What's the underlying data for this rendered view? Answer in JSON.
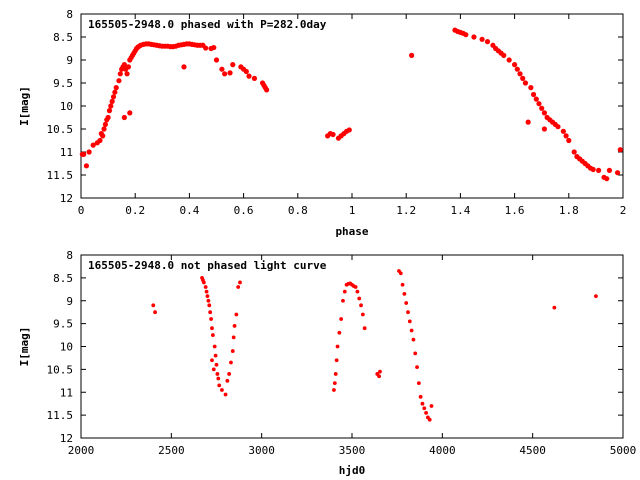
{
  "chart_data": [
    {
      "type": "scatter",
      "title": "165505-2948.0 phased with P=282.0day",
      "xlabel": "phase",
      "ylabel": "I[mag]",
      "xlim": [
        0,
        2
      ],
      "ylim": [
        12,
        8
      ],
      "y_inverted": true,
      "grid": false,
      "color": "#ff0000",
      "marker": "dot",
      "xticks": [
        0,
        0.2,
        0.4,
        0.6,
        0.8,
        1,
        1.2,
        1.4,
        1.6,
        1.8,
        2
      ],
      "xtick_labels": [
        "0",
        "0.2",
        "0.4",
        "0.6",
        "0.8",
        "1",
        "1.2",
        "1.4",
        "1.6",
        "1.8",
        "2"
      ],
      "yticks": [
        8,
        8.5,
        9,
        9.5,
        10,
        10.5,
        11,
        11.5,
        12
      ],
      "ytick_labels": [
        "8",
        "8.5",
        "9",
        "9.5",
        "10",
        "10.5",
        "11",
        "11.5",
        "12"
      ],
      "series": [
        {
          "x": [
            0.005,
            0.02,
            0.03,
            0.045,
            0.06,
            0.07,
            0.075,
            0.08,
            0.085,
            0.09,
            0.095,
            0.1,
            0.105,
            0.11,
            0.115,
            0.12,
            0.125,
            0.13,
            0.14,
            0.145,
            0.15,
            0.155,
            0.16,
            0.165,
            0.17,
            0.175,
            0.18,
            0.185,
            0.19,
            0.195,
            0.2,
            0.205,
            0.21,
            0.215,
            0.22,
            0.23,
            0.24,
            0.25,
            0.26,
            0.27,
            0.28,
            0.29,
            0.3,
            0.31,
            0.32,
            0.33,
            0.34,
            0.35,
            0.36,
            0.37,
            0.38,
            0.39,
            0.4,
            0.41,
            0.42,
            0.43,
            0.44,
            0.45,
            0.46,
            0.48,
            0.49,
            0.5,
            0.52,
            0.53,
            0.55,
            0.56,
            0.59,
            0.6,
            0.61,
            0.62,
            0.64,
            0.67,
            0.675,
            0.68,
            0.685,
            0.38,
            0.91,
            0.92,
            0.93,
            0.95,
            0.96,
            0.97,
            0.98,
            0.99,
            1.22,
            1.38,
            1.39,
            1.4,
            1.41,
            1.42,
            1.45,
            1.48,
            1.5,
            1.52,
            1.53,
            1.54,
            1.55,
            1.56,
            1.58,
            1.6,
            1.61,
            1.62,
            1.63,
            1.64,
            1.66,
            1.67,
            1.68,
            1.69,
            1.7,
            1.71,
            1.72,
            1.73,
            1.74,
            1.75,
            1.76,
            1.78,
            1.79,
            1.8,
            1.82,
            1.83,
            1.84,
            1.85,
            1.86,
            1.87,
            1.88,
            1.89,
            1.91,
            1.93,
            1.94,
            1.95,
            1.98,
            1.99,
            0.01,
            0.16,
            0.18,
            1.65,
            1.71
          ],
          "y": [
            11.05,
            11.3,
            11,
            10.85,
            10.8,
            10.75,
            10.6,
            10.65,
            10.5,
            10.4,
            10.3,
            10.25,
            10.1,
            10,
            9.9,
            9.8,
            9.7,
            9.6,
            9.45,
            9.3,
            9.2,
            9.15,
            9.1,
            9.2,
            9.3,
            9.15,
            9.0,
            8.95,
            8.9,
            8.85,
            8.8,
            8.75,
            8.72,
            8.7,
            8.68,
            8.66,
            8.65,
            8.65,
            8.66,
            8.67,
            8.68,
            8.69,
            8.7,
            8.7,
            8.7,
            8.71,
            8.71,
            8.7,
            8.68,
            8.67,
            8.66,
            8.65,
            8.65,
            8.66,
            8.67,
            8.68,
            8.68,
            8.68,
            8.74,
            8.75,
            8.73,
            9.0,
            9.2,
            9.3,
            9.28,
            9.1,
            9.15,
            9.2,
            9.25,
            9.35,
            9.4,
            9.5,
            9.55,
            9.6,
            9.65,
            9.15,
            10.65,
            10.6,
            10.62,
            10.7,
            10.65,
            10.6,
            10.55,
            10.52,
            8.9,
            8.35,
            8.38,
            8.4,
            8.42,
            8.45,
            8.5,
            8.55,
            8.6,
            8.68,
            8.75,
            8.8,
            8.85,
            8.9,
            9.0,
            9.1,
            9.2,
            9.3,
            9.4,
            9.5,
            9.6,
            9.75,
            9.85,
            9.95,
            10.05,
            10.15,
            10.25,
            10.3,
            10.35,
            10.4,
            10.45,
            10.55,
            10.65,
            10.75,
            11.0,
            11.1,
            11.15,
            11.2,
            11.25,
            11.3,
            11.35,
            11.38,
            11.4,
            11.55,
            11.58,
            11.4,
            11.45,
            10.95,
            11.05,
            10.25,
            10.15,
            10.35,
            10.5
          ],
          "x_extra_comment": "",
          "name": ""
        }
      ]
    },
    {
      "type": "scatter",
      "title": "165505-2948.0 not phased light curve",
      "xlabel": "hjd0",
      "ylabel": "I[mag]",
      "xlim": [
        2000,
        5000
      ],
      "ylim": [
        12,
        8
      ],
      "y_inverted": true,
      "grid": false,
      "color": "#ff0000",
      "marker": "dot",
      "xticks": [
        2000,
        2500,
        3000,
        3500,
        4000,
        4500,
        5000
      ],
      "xtick_labels": [
        "2000",
        "2500",
        "3000",
        "3500",
        "4000",
        "4500",
        "5000"
      ],
      "yticks": [
        8,
        8.5,
        9,
        9.5,
        10,
        10.5,
        11,
        11.5,
        12
      ],
      "ytick_labels": [
        "8",
        "8.5",
        "9",
        "9.5",
        "10",
        "10.5",
        "11",
        "11.5",
        "12"
      ],
      "series": [
        {
          "x": [
            2400,
            2410,
            2670,
            2675,
            2680,
            2690,
            2695,
            2700,
            2705,
            2710,
            2715,
            2720,
            2725,
            2730,
            2740,
            2745,
            2750,
            2755,
            2760,
            2765,
            2780,
            2800,
            2810,
            2820,
            2830,
            2840,
            2845,
            2850,
            2860,
            2870,
            2880,
            3400,
            3405,
            3410,
            3415,
            3420,
            3430,
            3440,
            3450,
            3460,
            3470,
            3480,
            3490,
            3500,
            3510,
            3520,
            3530,
            3540,
            3550,
            3560,
            3570,
            3640,
            3650,
            3655,
            3760,
            3770,
            3780,
            3790,
            3800,
            3810,
            3820,
            3830,
            3840,
            3850,
            3860,
            3870,
            3880,
            3890,
            3900,
            3910,
            3920,
            3930,
            3940,
            4620,
            4850,
            2725,
            2735
          ],
          "y": [
            9.1,
            9.25,
            8.5,
            8.55,
            8.6,
            8.7,
            8.8,
            8.9,
            9.0,
            9.1,
            9.25,
            9.4,
            9.6,
            9.75,
            10.0,
            10.2,
            10.4,
            10.6,
            10.7,
            10.85,
            10.95,
            11.05,
            10.75,
            10.6,
            10.35,
            10.1,
            9.8,
            9.55,
            9.3,
            8.7,
            8.6,
            10.95,
            10.8,
            10.6,
            10.3,
            10.0,
            9.7,
            9.4,
            9.0,
            8.8,
            8.65,
            8.63,
            8.62,
            8.65,
            8.68,
            8.7,
            8.8,
            8.95,
            9.1,
            9.3,
            9.6,
            10.6,
            10.65,
            10.55,
            8.35,
            8.4,
            8.65,
            8.85,
            9.05,
            9.25,
            9.45,
            9.65,
            9.85,
            10.15,
            10.45,
            10.8,
            11.1,
            11.25,
            11.35,
            11.45,
            11.55,
            11.6,
            11.3,
            9.15,
            8.9,
            10.3,
            10.5
          ],
          "name": ""
        }
      ]
    }
  ]
}
